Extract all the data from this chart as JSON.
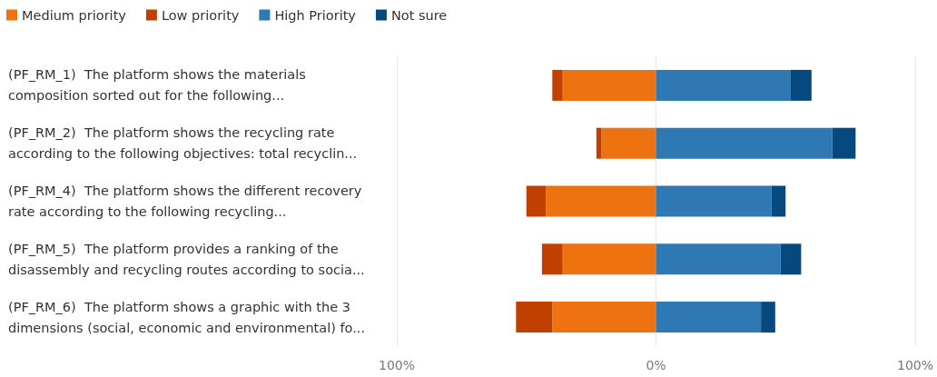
{
  "chart_data": {
    "type": "bar",
    "orientation": "horizontal",
    "stacked": true,
    "categories": [
      "(PF_RM_1)  The platform shows the materials composition sorted out for the following...",
      "(PF_RM_2)  The platform shows the recycling rate according to the following objectives: total recyclin...",
      "(PF_RM_4)  The platform shows the different recovery rate according to the following recycling...",
      "(PF_RM_5)  The platform provides a ranking of the disassembly and recycling routes according to socia...",
      "(PF_RM_6)  The platform shows a graphic with the 3 dimensions (social, economic and environmental) fo..."
    ],
    "series": [
      {
        "name": "Medium priority",
        "color": "#ee7210",
        "values": [
          -36,
          -21,
          -42.5,
          -36,
          -40
        ]
      },
      {
        "name": "Low priority",
        "color": "#c04000",
        "values": [
          -4,
          -2,
          -7.5,
          -8,
          -14
        ]
      },
      {
        "name": "High Priority",
        "color": "#2e78b4",
        "values": [
          52,
          68,
          44.5,
          48,
          40.5
        ]
      },
      {
        "name": "Not sure",
        "color": "#06497f",
        "values": [
          8,
          9,
          5.5,
          8,
          5.5
        ]
      }
    ],
    "xlim": [
      -100,
      100
    ],
    "xticks": [
      {
        "value": -100,
        "label": "100%"
      },
      {
        "value": 0,
        "label": "0%"
      },
      {
        "value": 100,
        "label": "100%"
      }
    ],
    "grid": "x",
    "legend": "top left"
  }
}
